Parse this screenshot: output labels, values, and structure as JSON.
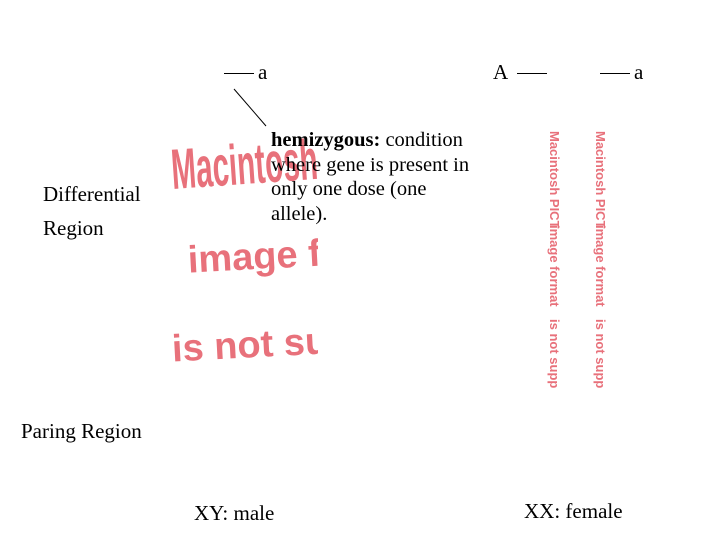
{
  "colors": {
    "text": "#000000",
    "placeholder_red": "#e8717b",
    "background": "#ffffff"
  },
  "y_chromosome": {
    "allele_label": "a",
    "placeholder_lines": [
      "Macintosh PICT",
      "image format",
      "is not supported"
    ]
  },
  "x_chromosomes": {
    "left_allele_label": "A",
    "right_allele_label": "a",
    "placeholder_lines": [
      "Macintosh PICT",
      "image format",
      "is not supported"
    ]
  },
  "labels": {
    "differential_line1": "Differential",
    "differential_line2": "Region",
    "paring_region": "Paring Region",
    "xy_caption": "XY: male",
    "xx_caption": "XX: female"
  },
  "definition": {
    "term": "hemizygous:",
    "text": "condition where gene is present in only one dose (one allele)."
  }
}
